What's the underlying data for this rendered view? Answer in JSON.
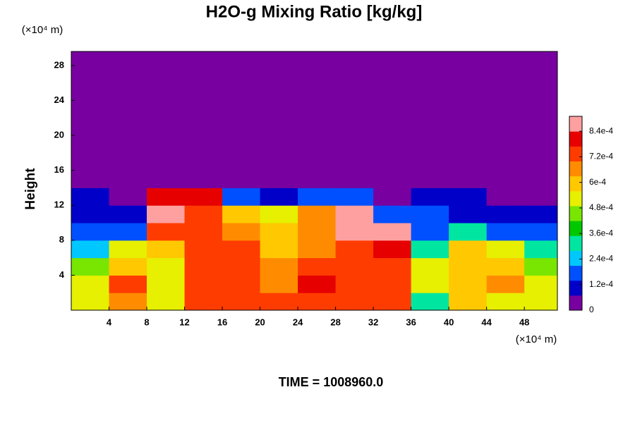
{
  "chart_data": {
    "type": "contour",
    "title": "H2O-g Mixing Ratio [kg/kg]",
    "ylabel": "Height",
    "x_unit": "(×10⁴ m)",
    "y_unit": "(×10⁴ m)",
    "annotation": "TIME = 1008960.0",
    "xlim": [
      0,
      51.5
    ],
    "ylim": [
      0,
      29.6
    ],
    "xticks": [
      4,
      8,
      12,
      16,
      20,
      24,
      28,
      32,
      36,
      40,
      44,
      48
    ],
    "yticks": [
      4,
      8,
      12,
      16,
      20,
      24,
      28
    ],
    "x_edges": [
      0,
      4,
      8,
      12,
      16,
      20,
      24,
      28,
      32,
      36,
      40,
      44,
      48,
      52
    ],
    "y_edges": [
      0,
      2,
      4,
      6,
      8,
      10,
      12,
      14,
      30
    ],
    "z": [
      [
        0.00055,
        0.00065,
        0.0005,
        0.0007,
        0.00075,
        0.0007,
        0.0007,
        0.0007,
        0.0007,
        0.0003,
        0.0006,
        0.00055,
        0.0005
      ],
      [
        0.0005,
        0.0007,
        0.0005,
        0.00075,
        0.0007,
        0.00065,
        0.0008,
        0.0007,
        0.00075,
        0.0005,
        0.0006,
        0.00065,
        0.00055
      ],
      [
        0.00045,
        0.0006,
        0.0005,
        0.00075,
        0.0007,
        0.00065,
        0.0007,
        0.0007,
        0.00075,
        0.0005,
        0.0006,
        0.0006,
        0.00045
      ],
      [
        0.00025,
        0.0005,
        0.0006,
        0.00075,
        0.0007,
        0.0006,
        0.00065,
        0.0007,
        0.0008,
        0.0003,
        0.0006,
        0.00055,
        0.0003
      ],
      [
        0.00015,
        0.0002,
        0.0007,
        0.0007,
        0.00065,
        0.0006,
        0.00065,
        0.00085,
        0.00085,
        0.00015,
        0.0003,
        0.0002,
        0.00015
      ],
      [
        0.0001,
        0.0001,
        0.00085,
        0.0007,
        0.0006,
        0.00055,
        0.00065,
        0.0009,
        0.00015,
        0.00015,
        0.0001,
        0.0001,
        0.0001
      ],
      [
        0.0001,
        0,
        0.0008,
        0.0008,
        0.00015,
        0.0001,
        0.0002,
        0.00015,
        5e-05,
        0.0001,
        0.0001,
        5e-05,
        0
      ],
      [
        0,
        0,
        0,
        0,
        0,
        0,
        0,
        0,
        0,
        0,
        0,
        0,
        0
      ]
    ],
    "clim": [
      0,
      0.00091
    ],
    "colormap": [
      "#7800a0",
      "#0000c8",
      "#0050ff",
      "#00c8ff",
      "#00e6a0",
      "#00c800",
      "#78e600",
      "#e6f000",
      "#ffc800",
      "#ff8c00",
      "#ff3c00",
      "#e60000",
      "#ffa0a0"
    ],
    "cticks": [
      0,
      {
        "value": 0.00012,
        "label": "1.2e-4"
      },
      {
        "value": 0.00024,
        "label": "2.4e-4"
      },
      {
        "value": 0.00036,
        "label": "3.6e-4"
      },
      {
        "value": 0.00048,
        "label": "4.8e-4"
      },
      {
        "value": 0.0006,
        "label": "6e-4"
      },
      {
        "value": 0.00072,
        "label": "7.2e-4"
      },
      {
        "value": 0.00084,
        "label": "8.4e-4"
      }
    ]
  }
}
